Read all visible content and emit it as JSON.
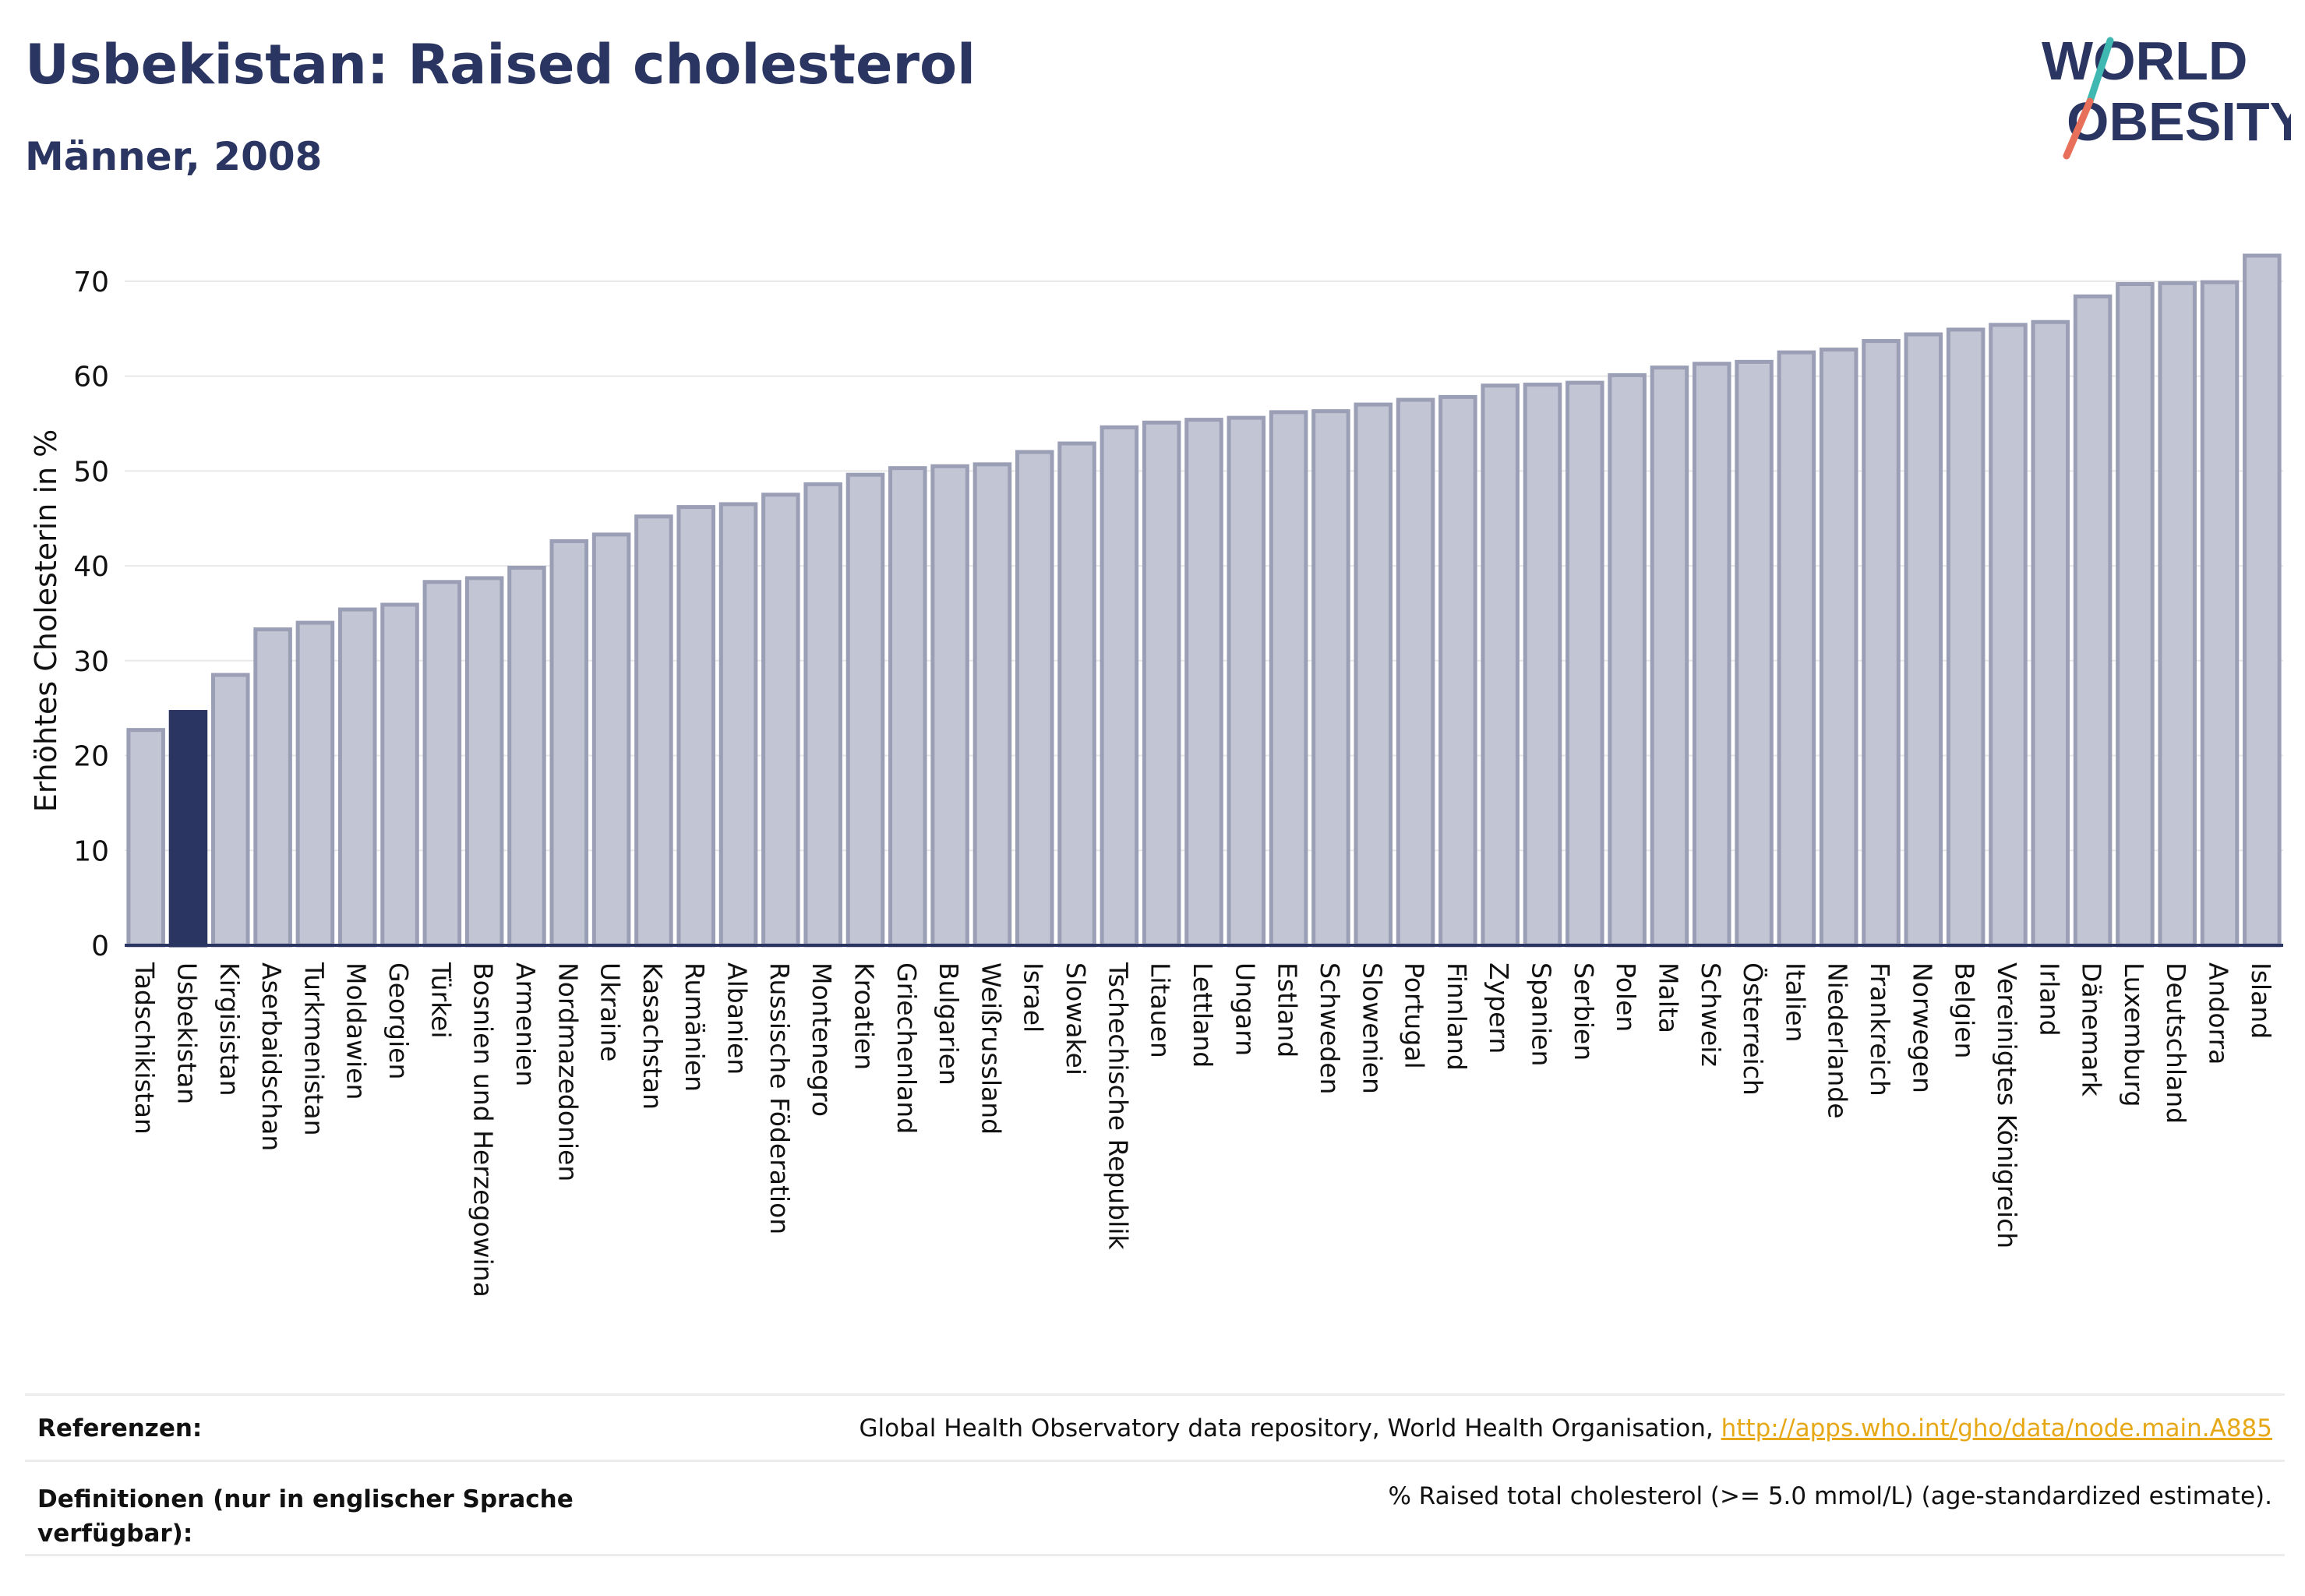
{
  "header": {
    "title": "Usbekistan: Raised cholesterol",
    "subtitle": "Männer, 2008",
    "logo_line1": "WORLD",
    "logo_line2": "OBESITY"
  },
  "colors": {
    "title": "#2b3562",
    "bar_default": "#c2c5d3",
    "bar_default_stroke": "#9a9fb6",
    "bar_highlight": "#2b3562",
    "logo_teal": "#3fb8b1",
    "logo_coral": "#e8705a",
    "link": "#e6a817"
  },
  "chart_data": {
    "type": "bar",
    "ylabel": "Erhöhtes Cholesterin in %",
    "ylim": [
      0,
      75
    ],
    "yticks": [
      0,
      10,
      20,
      30,
      40,
      50,
      60,
      70
    ],
    "grid": true,
    "highlight": "Usbekistan",
    "categories": [
      "Tadschikistan",
      "Usbekistan",
      "Kirgisistan",
      "Aserbaidschan",
      "Turkmenistan",
      "Moldawien",
      "Georgien",
      "Türkei",
      "Bosnien und Herzegowina",
      "Armenien",
      "Nordmazedonien",
      "Ukraine",
      "Kasachstan",
      "Rumänien",
      "Albanien",
      "Russische Föderation",
      "Montenegro",
      "Kroatien",
      "Griechenland",
      "Bulgarien",
      "Weißrussland",
      "Israel",
      "Slowakei",
      "Tschechische Republik",
      "Litauen",
      "Lettland",
      "Ungarn",
      "Estland",
      "Schweden",
      "Slowenien",
      "Portugal",
      "Finnland",
      "Zypern",
      "Spanien",
      "Serbien",
      "Polen",
      "Malta",
      "Schweiz",
      "Österreich",
      "Italien",
      "Niederlande",
      "Frankreich",
      "Norwegen",
      "Belgien",
      "Vereinigtes Königreich",
      "Irland",
      "Dänemark",
      "Luxemburg",
      "Deutschland",
      "Andorra",
      "Island"
    ],
    "values": [
      22.7,
      24.6,
      28.5,
      33.3,
      34.0,
      35.4,
      35.9,
      38.3,
      38.7,
      39.8,
      42.6,
      43.3,
      45.2,
      46.2,
      46.5,
      47.5,
      48.6,
      49.6,
      50.3,
      50.5,
      50.7,
      52.0,
      52.9,
      54.6,
      55.1,
      55.4,
      55.6,
      56.2,
      56.3,
      57.0,
      57.5,
      57.8,
      59.0,
      59.1,
      59.3,
      60.1,
      60.9,
      61.3,
      61.5,
      62.5,
      62.8,
      63.7,
      64.4,
      64.9,
      65.4,
      65.7,
      68.4,
      69.7,
      69.8,
      69.9,
      72.7
    ]
  },
  "footer": {
    "references_label": "Referenzen:",
    "references_text": "Global Health Observatory data repository, World Health Organisation, ",
    "references_link": "http://apps.who.int/gho/data/node.main.A885",
    "definitions_label": "Definitionen (nur in englischer Sprache verfügbar):",
    "definitions_text": "% Raised total cholesterol (>= 5.0 mmol/L) (age-standardized estimate)."
  }
}
